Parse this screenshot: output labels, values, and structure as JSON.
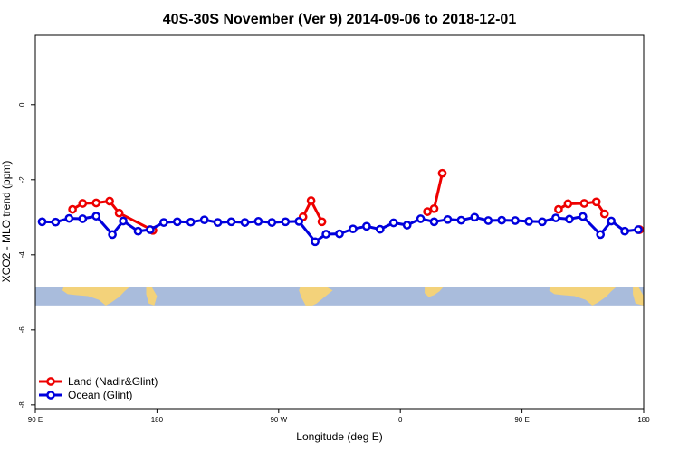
{
  "colors": {
    "land": "#ee0000",
    "ocean": "#0000dd",
    "map_sea": "#a9bcdc",
    "map_land": "#f3d27a",
    "frame": "#000000"
  },
  "chart_data": {
    "type": "line",
    "title": "40S-30S November (Ver 9)   2014-09-06 to 2018-12-01",
    "xlabel": "Longitude (deg E)",
    "ylabel": "XCO2 - MLO trend (ppm)",
    "xlim": [
      90,
      540
    ],
    "ylim": [
      -8.1,
      1.85
    ],
    "x_ticks": [
      {
        "value": 90,
        "label": "90 E"
      },
      {
        "value": 180,
        "label": "180"
      },
      {
        "value": 270,
        "label": "90 W"
      },
      {
        "value": 360,
        "label": "0"
      },
      {
        "value": 450,
        "label": "90 E"
      },
      {
        "value": 540,
        "label": "180"
      }
    ],
    "y_ticks": [
      {
        "value": 0,
        "label": "0"
      },
      {
        "value": -2,
        "label": "-2"
      },
      {
        "value": -4,
        "label": "-4"
      },
      {
        "value": -6,
        "label": "-6"
      },
      {
        "value": -8,
        "label": "-8"
      }
    ],
    "legend": {
      "position": "bottom-left",
      "entries": [
        "Land (Nadir&Glint)",
        "Ocean (Glint)"
      ]
    },
    "series": [
      {
        "name": "Land (Nadir&Glint)",
        "color": "#ee0000",
        "segments": [
          [
            [
              117.5,
              -2.79
            ],
            [
              125,
              -2.63
            ],
            [
              135,
              -2.62
            ],
            [
              145,
              -2.57
            ],
            [
              152,
              -2.89
            ],
            [
              177,
              -3.35
            ]
          ],
          [
            [
              288,
              -2.99
            ],
            [
              294,
              -2.56
            ],
            [
              302,
              -3.12
            ]
          ],
          [
            [
              380,
              -2.85
            ],
            [
              385,
              -2.77
            ],
            [
              391,
              -1.83
            ]
          ],
          [
            [
              477,
              -2.79
            ],
            [
              484,
              -2.64
            ],
            [
              496,
              -2.63
            ],
            [
              505,
              -2.59
            ],
            [
              511,
              -2.91
            ]
          ],
          [
            [
              537,
              -3.33
            ]
          ]
        ]
      },
      {
        "name": "Ocean (Glint)",
        "color": "#0000dd",
        "segments": [
          [
            [
              95,
              -3.12
            ],
            [
              105,
              -3.13
            ],
            [
              115,
              -3.03
            ],
            [
              125,
              -3.04
            ],
            [
              135,
              -2.97
            ],
            [
              147,
              -3.46
            ],
            [
              155,
              -3.1
            ],
            [
              166,
              -3.37
            ],
            [
              175,
              -3.33
            ],
            [
              185,
              -3.14
            ],
            [
              195,
              -3.12
            ],
            [
              205,
              -3.13
            ],
            [
              215,
              -3.07
            ],
            [
              225,
              -3.14
            ],
            [
              235,
              -3.12
            ],
            [
              245,
              -3.14
            ],
            [
              255,
              -3.11
            ],
            [
              265,
              -3.14
            ],
            [
              275,
              -3.12
            ],
            [
              285,
              -3.11
            ],
            [
              297,
              -3.65
            ],
            [
              305,
              -3.45
            ],
            [
              315,
              -3.44
            ],
            [
              325,
              -3.31
            ],
            [
              335,
              -3.24
            ],
            [
              345,
              -3.32
            ],
            [
              355,
              -3.15
            ],
            [
              365,
              -3.21
            ],
            [
              375,
              -3.04
            ],
            [
              385,
              -3.12
            ],
            [
              395,
              -3.06
            ],
            [
              405,
              -3.08
            ],
            [
              415,
              -3.0
            ],
            [
              425,
              -3.09
            ],
            [
              435,
              -3.08
            ],
            [
              445,
              -3.09
            ],
            [
              455,
              -3.11
            ],
            [
              465,
              -3.12
            ],
            [
              475,
              -3.02
            ],
            [
              485,
              -3.05
            ],
            [
              495,
              -2.98
            ],
            [
              508,
              -3.46
            ],
            [
              516,
              -3.1
            ],
            [
              526,
              -3.37
            ],
            [
              536,
              -3.33
            ]
          ]
        ]
      }
    ],
    "background_map": {
      "y_range": [
        -4.85,
        -5.35
      ]
    }
  }
}
